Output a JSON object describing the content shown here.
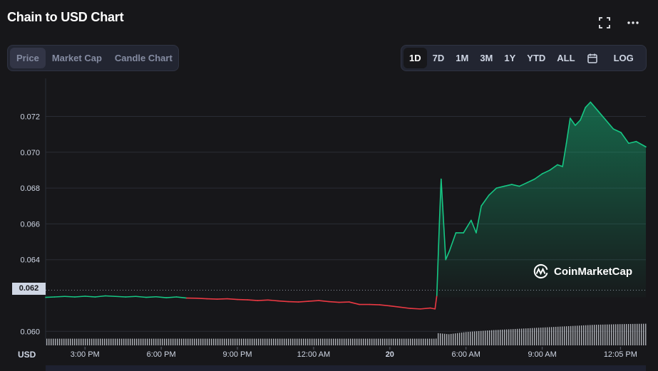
{
  "header": {
    "title": "Chain to USD Chart"
  },
  "icons": {
    "expand": "expand-icon",
    "more": "more-dots-icon",
    "calendar": "calendar-icon",
    "brand": "coinmarketcap-logo-icon"
  },
  "chart_tabs": [
    {
      "label": "Price",
      "active": true
    },
    {
      "label": "Market Cap",
      "active": false
    },
    {
      "label": "Candle Chart",
      "active": false
    }
  ],
  "ranges": [
    {
      "label": "1D",
      "active": true
    },
    {
      "label": "7D",
      "active": false
    },
    {
      "label": "1M",
      "active": false
    },
    {
      "label": "3M",
      "active": false
    },
    {
      "label": "1Y",
      "active": false
    },
    {
      "label": "YTD",
      "active": false
    },
    {
      "label": "ALL",
      "active": false
    }
  ],
  "log_label": "LOG",
  "currency_label": "USD",
  "current_price_label": "0.062",
  "watermark": "CoinMarketCap",
  "colors": {
    "up": "#16c784",
    "down": "#ea3943",
    "background": "#17171a",
    "grid": "#2a2d35",
    "axis_text": "#cfd6e4"
  },
  "chart_data": {
    "type": "line",
    "title": "Chain to USD Chart",
    "xlabel": "",
    "ylabel": "USD",
    "ylim": [
      0.0593,
      0.0735
    ],
    "y_ticks": [
      "0.060",
      "0.062",
      "0.064",
      "0.066",
      "0.068",
      "0.070",
      "0.072"
    ],
    "x_ticks": [
      {
        "label": "3:00 PM",
        "t": 3.0
      },
      {
        "label": "6:00 PM",
        "t": 6.0
      },
      {
        "label": "9:00 PM",
        "t": 9.0
      },
      {
        "label": "12:00 AM",
        "t": 12.0
      },
      {
        "label": "20",
        "t": 15.0,
        "bold": true
      },
      {
        "label": "6:00 AM",
        "t": 18.0
      },
      {
        "label": "9:00 AM",
        "t": 21.0
      },
      {
        "label": "12:05 PM",
        "t": 24.08
      }
    ],
    "x_range": [
      1.45,
      25.08
    ],
    "reference_price": 0.0619,
    "series": [
      {
        "values": [
          [
            1.45,
            0.0619
          ],
          [
            1.8,
            0.06192
          ],
          [
            2.2,
            0.06195
          ],
          [
            2.6,
            0.06192
          ],
          [
            3.0,
            0.06196
          ],
          [
            3.4,
            0.06192
          ],
          [
            3.8,
            0.06198
          ],
          [
            4.2,
            0.06195
          ],
          [
            4.6,
            0.06192
          ],
          [
            5.0,
            0.06195
          ],
          [
            5.4,
            0.0619
          ],
          [
            5.8,
            0.06193
          ],
          [
            6.2,
            0.06188
          ],
          [
            6.6,
            0.06192
          ],
          [
            7.0,
            0.06186
          ],
          [
            7.4,
            0.06185
          ],
          [
            7.8,
            0.06182
          ],
          [
            8.2,
            0.0618
          ],
          [
            8.6,
            0.06182
          ],
          [
            9.0,
            0.06178
          ],
          [
            9.4,
            0.06176
          ],
          [
            9.8,
            0.06172
          ],
          [
            10.2,
            0.06175
          ],
          [
            10.6,
            0.0617
          ],
          [
            11.0,
            0.06166
          ],
          [
            11.4,
            0.06164
          ],
          [
            11.8,
            0.06168
          ],
          [
            12.2,
            0.06172
          ],
          [
            12.6,
            0.06166
          ],
          [
            13.0,
            0.06162
          ],
          [
            13.4,
            0.06164
          ],
          [
            13.8,
            0.0615
          ],
          [
            14.2,
            0.0615
          ],
          [
            14.6,
            0.06148
          ],
          [
            15.0,
            0.06142
          ],
          [
            15.4,
            0.06135
          ],
          [
            15.8,
            0.06128
          ],
          [
            16.2,
            0.06125
          ],
          [
            16.6,
            0.0613
          ],
          [
            16.78,
            0.06125
          ],
          [
            16.85,
            0.062
          ],
          [
            16.95,
            0.066
          ],
          [
            17.02,
            0.0685
          ],
          [
            17.08,
            0.067
          ],
          [
            17.2,
            0.064
          ],
          [
            17.35,
            0.0645
          ],
          [
            17.6,
            0.0655
          ],
          [
            17.9,
            0.0655
          ],
          [
            18.2,
            0.0662
          ],
          [
            18.4,
            0.0655
          ],
          [
            18.6,
            0.067
          ],
          [
            18.9,
            0.0676
          ],
          [
            19.2,
            0.068
          ],
          [
            19.5,
            0.0681
          ],
          [
            19.8,
            0.0682
          ],
          [
            20.1,
            0.0681
          ],
          [
            20.4,
            0.0683
          ],
          [
            20.7,
            0.0685
          ],
          [
            21.0,
            0.0688
          ],
          [
            21.3,
            0.069
          ],
          [
            21.6,
            0.0693
          ],
          [
            21.8,
            0.0692
          ],
          [
            21.95,
            0.0705
          ],
          [
            22.1,
            0.0719
          ],
          [
            22.3,
            0.0715
          ],
          [
            22.5,
            0.0718
          ],
          [
            22.7,
            0.0725
          ],
          [
            22.9,
            0.0728
          ],
          [
            23.2,
            0.0723
          ],
          [
            23.5,
            0.0718
          ],
          [
            23.8,
            0.0713
          ],
          [
            24.1,
            0.0711
          ],
          [
            24.4,
            0.0705
          ],
          [
            24.7,
            0.0706
          ],
          [
            25.08,
            0.0703
          ]
        ]
      }
    ],
    "volume": {
      "x_range": [
        1.45,
        25.08
      ],
      "values": [
        [
          1.45,
          0.3
        ],
        [
          16.8,
          0.3
        ],
        [
          16.85,
          0.55
        ],
        [
          17.3,
          0.5
        ],
        [
          18.0,
          0.6
        ],
        [
          19.0,
          0.68
        ],
        [
          20.0,
          0.74
        ],
        [
          21.0,
          0.8
        ],
        [
          22.0,
          0.86
        ],
        [
          23.0,
          0.92
        ],
        [
          24.0,
          0.95
        ],
        [
          25.08,
          0.97
        ]
      ]
    }
  }
}
